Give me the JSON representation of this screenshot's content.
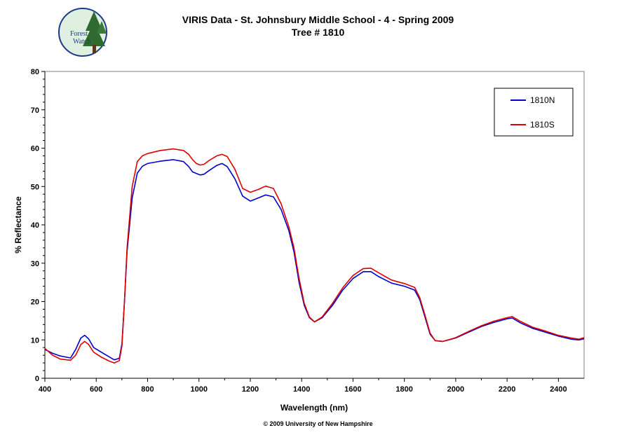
{
  "header": {
    "title_line1": "VIRIS Data - St. Johnsbury Middle School - 4 - Spring 2009",
    "title_line2": "Tree # 1810"
  },
  "logo": {
    "icon": "forest-watch-logo",
    "text_line1": "Forest",
    "text_line2": "Watch"
  },
  "footer": {
    "copyright": "© 2009 University of New Hampshire"
  },
  "chart_data": {
    "type": "line",
    "title": "VIRIS Data - St. Johnsbury Middle School - 4 - Spring 2009",
    "subtitle": "Tree # 1810",
    "xlabel": "Wavelength (nm)",
    "ylabel": "% Reflectance",
    "xlim": [
      400,
      2500
    ],
    "ylim": [
      0,
      80
    ],
    "x_ticks": [
      400,
      600,
      800,
      1000,
      1200,
      1400,
      1600,
      1800,
      2000,
      2200,
      2400
    ],
    "y_ticks": [
      0,
      10,
      20,
      30,
      40,
      50,
      60,
      70,
      80
    ],
    "grid": false,
    "legend_position": "top-right",
    "series": [
      {
        "name": "1810N",
        "color": "#0000cc",
        "points": [
          [
            400,
            7.5
          ],
          [
            430,
            6.5
          ],
          [
            460,
            5.8
          ],
          [
            500,
            5.3
          ],
          [
            520,
            7.5
          ],
          [
            540,
            10.5
          ],
          [
            555,
            11.2
          ],
          [
            570,
            10.3
          ],
          [
            590,
            8.0
          ],
          [
            620,
            6.8
          ],
          [
            650,
            5.6
          ],
          [
            670,
            4.8
          ],
          [
            690,
            5.2
          ],
          [
            700,
            9.0
          ],
          [
            710,
            20.0
          ],
          [
            720,
            33.0
          ],
          [
            740,
            47.0
          ],
          [
            760,
            53.5
          ],
          [
            780,
            55.3
          ],
          [
            800,
            56.0
          ],
          [
            850,
            56.6
          ],
          [
            900,
            57.0
          ],
          [
            940,
            56.5
          ],
          [
            960,
            55.2
          ],
          [
            975,
            53.8
          ],
          [
            990,
            53.4
          ],
          [
            1005,
            53.0
          ],
          [
            1020,
            53.2
          ],
          [
            1040,
            54.2
          ],
          [
            1070,
            55.5
          ],
          [
            1090,
            56.0
          ],
          [
            1110,
            55.2
          ],
          [
            1140,
            52.0
          ],
          [
            1170,
            47.5
          ],
          [
            1200,
            46.2
          ],
          [
            1230,
            47.0
          ],
          [
            1260,
            47.8
          ],
          [
            1290,
            47.3
          ],
          [
            1320,
            44.0
          ],
          [
            1350,
            38.5
          ],
          [
            1370,
            33.0
          ],
          [
            1390,
            25.0
          ],
          [
            1410,
            19.0
          ],
          [
            1430,
            15.8
          ],
          [
            1450,
            14.7
          ],
          [
            1480,
            15.8
          ],
          [
            1520,
            19.0
          ],
          [
            1560,
            23.0
          ],
          [
            1600,
            26.0
          ],
          [
            1640,
            27.8
          ],
          [
            1670,
            27.8
          ],
          [
            1700,
            26.5
          ],
          [
            1750,
            24.8
          ],
          [
            1800,
            24.0
          ],
          [
            1840,
            23.0
          ],
          [
            1860,
            20.5
          ],
          [
            1880,
            16.0
          ],
          [
            1900,
            11.5
          ],
          [
            1920,
            9.8
          ],
          [
            1950,
            9.6
          ],
          [
            2000,
            10.5
          ],
          [
            2050,
            12.0
          ],
          [
            2100,
            13.5
          ],
          [
            2150,
            14.6
          ],
          [
            2200,
            15.5
          ],
          [
            2220,
            15.7
          ],
          [
            2250,
            14.5
          ],
          [
            2300,
            13.0
          ],
          [
            2350,
            12.0
          ],
          [
            2400,
            11.0
          ],
          [
            2450,
            10.2
          ],
          [
            2480,
            10.0
          ],
          [
            2500,
            10.3
          ]
        ]
      },
      {
        "name": "1810S",
        "color": "#dd0000",
        "points": [
          [
            400,
            7.8
          ],
          [
            430,
            6.0
          ],
          [
            460,
            5.0
          ],
          [
            500,
            4.7
          ],
          [
            520,
            6.0
          ],
          [
            540,
            8.8
          ],
          [
            555,
            9.6
          ],
          [
            570,
            8.8
          ],
          [
            590,
            6.8
          ],
          [
            620,
            5.5
          ],
          [
            650,
            4.5
          ],
          [
            670,
            4.0
          ],
          [
            690,
            4.6
          ],
          [
            700,
            8.5
          ],
          [
            710,
            20.0
          ],
          [
            720,
            34.0
          ],
          [
            740,
            50.0
          ],
          [
            760,
            56.5
          ],
          [
            780,
            58.0
          ],
          [
            800,
            58.6
          ],
          [
            850,
            59.4
          ],
          [
            900,
            59.8
          ],
          [
            940,
            59.4
          ],
          [
            960,
            58.4
          ],
          [
            975,
            57.0
          ],
          [
            990,
            56.0
          ],
          [
            1005,
            55.6
          ],
          [
            1020,
            55.8
          ],
          [
            1040,
            56.8
          ],
          [
            1070,
            58.0
          ],
          [
            1090,
            58.4
          ],
          [
            1110,
            57.8
          ],
          [
            1140,
            54.5
          ],
          [
            1170,
            49.5
          ],
          [
            1200,
            48.5
          ],
          [
            1230,
            49.2
          ],
          [
            1260,
            50.1
          ],
          [
            1290,
            49.5
          ],
          [
            1320,
            45.5
          ],
          [
            1350,
            39.5
          ],
          [
            1370,
            34.0
          ],
          [
            1390,
            26.0
          ],
          [
            1410,
            19.5
          ],
          [
            1430,
            16.0
          ],
          [
            1450,
            14.7
          ],
          [
            1480,
            16.0
          ],
          [
            1520,
            19.5
          ],
          [
            1560,
            23.6
          ],
          [
            1600,
            26.8
          ],
          [
            1640,
            28.6
          ],
          [
            1670,
            28.7
          ],
          [
            1700,
            27.5
          ],
          [
            1750,
            25.6
          ],
          [
            1800,
            24.7
          ],
          [
            1840,
            23.7
          ],
          [
            1860,
            21.0
          ],
          [
            1880,
            16.5
          ],
          [
            1900,
            11.8
          ],
          [
            1920,
            9.8
          ],
          [
            1950,
            9.6
          ],
          [
            2000,
            10.6
          ],
          [
            2050,
            12.2
          ],
          [
            2100,
            13.7
          ],
          [
            2150,
            14.9
          ],
          [
            2200,
            15.8
          ],
          [
            2220,
            16.1
          ],
          [
            2250,
            14.9
          ],
          [
            2300,
            13.3
          ],
          [
            2350,
            12.3
          ],
          [
            2400,
            11.2
          ],
          [
            2450,
            10.5
          ],
          [
            2480,
            10.2
          ],
          [
            2500,
            10.6
          ]
        ]
      }
    ]
  }
}
